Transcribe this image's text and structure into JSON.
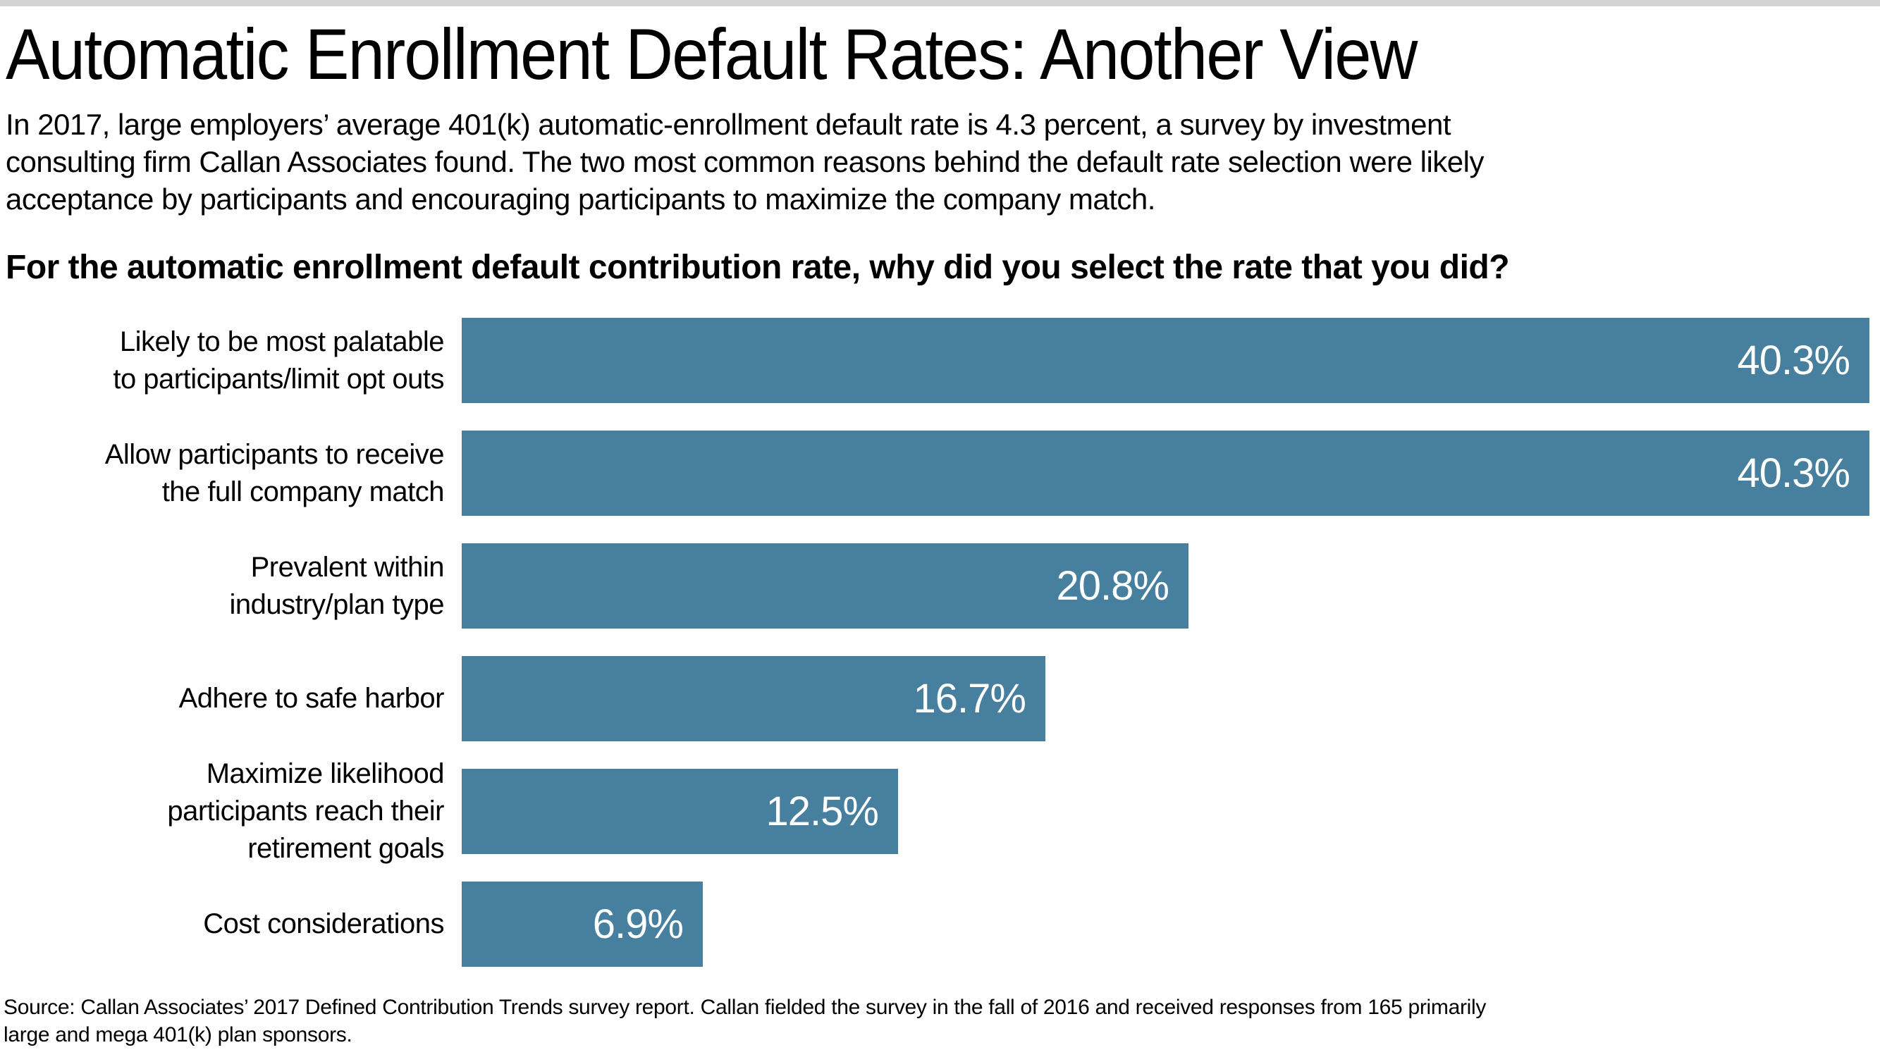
{
  "page": {
    "title": "Automatic Enrollment Default Rates: Another View",
    "intro": "In 2017, large employers’ average 401(k) automatic-enrollment default rate is 4.3 percent, a survey by investment\nconsulting firm Callan Associates found. The two most common reasons behind the default rate selection were likely\nacceptance by participants and encouraging participants to maximize the company match.",
    "source": "Source: Callan Associates’ 2017 Defined Contribution Trends survey report. Callan fielded the survey in the fall of 2016 and received responses from 165 primarily\nlarge and mega 401(k) plan sponsors.",
    "colors": {
      "bar": "#47809f",
      "top_strip": "#d3d3d3",
      "value_label": "#ffffff",
      "text": "#000000"
    }
  },
  "chart_data": {
    "type": "bar",
    "orientation": "horizontal",
    "title": "For the automatic enrollment default contribution rate, why did you select the rate that you did?",
    "categories": [
      "Likely to be most palatable\nto participants/limit opt outs",
      "Allow participants to receive\nthe full company match",
      "Prevalent within\nindustry/plan type",
      "Adhere to safe harbor",
      "Maximize likelihood\nparticipants reach their\nretirement goals",
      "Cost considerations"
    ],
    "values": [
      40.3,
      40.3,
      20.8,
      16.7,
      12.5,
      6.9
    ],
    "value_labels": [
      "40.3%",
      "40.3%",
      "20.8%",
      "16.7%",
      "12.5%",
      "6.9%"
    ],
    "xlabel": "",
    "ylabel": "",
    "xlim": [
      0,
      40.3
    ],
    "grid": false,
    "legend": false,
    "bar_color": "#47809f",
    "value_label_position": "inside-right"
  }
}
